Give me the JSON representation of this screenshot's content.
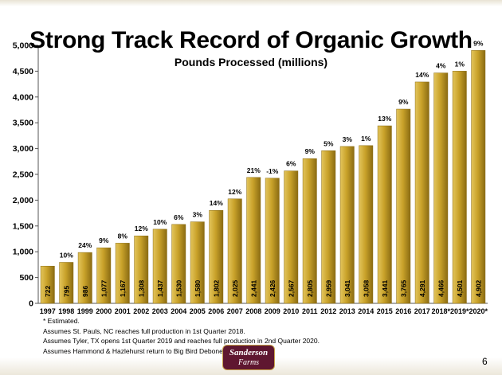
{
  "slide": {
    "title": "Strong Track Record of Organic Growth",
    "subtitle": "Pounds Processed (millions)",
    "page_number": "6",
    "logo_line1": "Sanderson",
    "logo_line2": "Farms",
    "notes": [
      "* Estimated.",
      "Assumes St. Pauls, NC reaches full production in 1st Quarter 2018.",
      "Assumes Tyler, TX opens 1st Quarter 2019 and reaches full production in 2nd Quarter 2020.",
      "Assumes Hammond & Hazlehurst return to Big Bird Debone in 2020."
    ]
  },
  "colors": {
    "bar_light": "#e3c55c",
    "bar_mid": "#c9a22a",
    "bar_dark": "#8a6b12",
    "axis": "#555555"
  },
  "chart_data": {
    "type": "bar",
    "categories": [
      "1997",
      "1998",
      "1999",
      "2000",
      "2001",
      "2002",
      "2003",
      "2004",
      "2005",
      "2006",
      "2007",
      "2008",
      "2009",
      "2010",
      "2011",
      "2012",
      "2013",
      "2014",
      "2015",
      "2016",
      "2017",
      "2018*",
      "2019*",
      "2020*"
    ],
    "values": [
      722,
      795,
      986,
      1077,
      1167,
      1308,
      1437,
      1530,
      1580,
      1802,
      2025,
      2441,
      2426,
      2567,
      2805,
      2959,
      3041,
      3058,
      3441,
      3765,
      4291,
      4466,
      4501,
      4902
    ],
    "value_labels": [
      "722",
      "795",
      "986",
      "1,077",
      "1,167",
      "1,308",
      "1,437",
      "1,530",
      "1,580",
      "1,802",
      "2,025",
      "2,441",
      "2,426",
      "2,567",
      "2,805",
      "2,959",
      "3,041",
      "3,058",
      "3,441",
      "3,765",
      "4,291",
      "4,466",
      "4,501",
      "4,902"
    ],
    "growth_labels": [
      "",
      "10%",
      "24%",
      "9%",
      "8%",
      "12%",
      "10%",
      "6%",
      "3%",
      "14%",
      "12%",
      "21%",
      "-1%",
      "6%",
      "9%",
      "5%",
      "3%",
      "1%",
      "13%",
      "9%",
      "14%",
      "4%",
      "1%",
      "9%"
    ],
    "y_ticks": [
      0,
      500,
      1000,
      1500,
      2000,
      2500,
      3000,
      3500,
      4000,
      4500,
      5000
    ],
    "y_tick_labels": [
      "0",
      "500",
      "1,000",
      "1,500",
      "2,000",
      "2,500",
      "3,000",
      "3,500",
      "4,000",
      "4,500",
      "5,000"
    ],
    "ylim": [
      0,
      5000
    ],
    "grid": false,
    "legend": "none"
  }
}
